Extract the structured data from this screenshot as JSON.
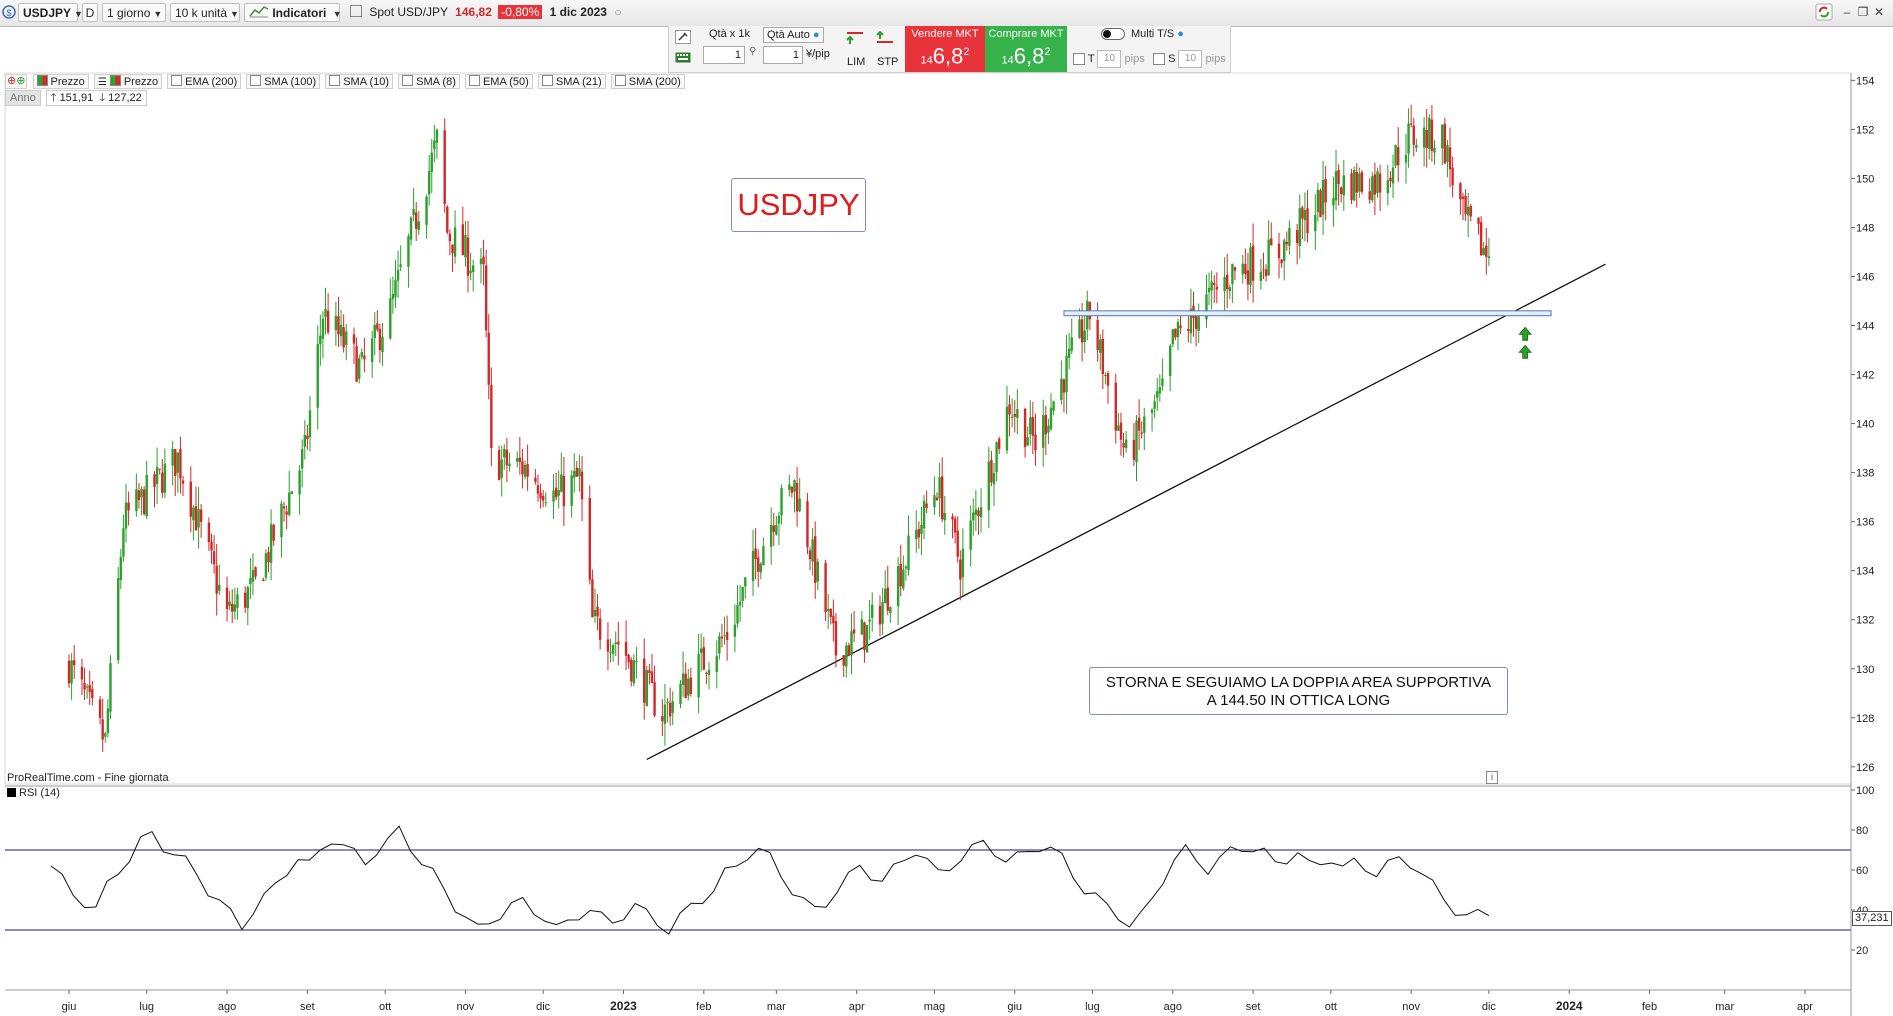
{
  "toolbar": {
    "symbol": "USDJPY",
    "d_button": "D",
    "period": "1 giorno",
    "units": "10 k unità",
    "indicators": "Indicatori",
    "spot_label": "Spot USD/JPY",
    "spot_price": "146,82",
    "spot_change": "-0,80%",
    "date": "1 dic 2023"
  },
  "trade": {
    "qty_label": "Qtà  x 1k",
    "qty_value": "1",
    "qty_auto": "Qtà Auto",
    "pip_value": "1",
    "pip_unit": "¥/pip",
    "lim": "LIM",
    "stp": "STP",
    "sell_label": "Vendere MKT",
    "buy_label": "Comprare MKT",
    "price_small": "14",
    "price_big": "6,8",
    "price_sup": "2",
    "multi": "Multi T/S",
    "t_label": "T",
    "s_label": "S",
    "pips_value": "10",
    "pips_label": "pips"
  },
  "legend": {
    "items": [
      "Prezzo",
      "Prezzo",
      "EMA (200)",
      "SMA (100)",
      "SMA (10)",
      "SMA (8)",
      "EMA (50)",
      "SMA (21)",
      "SMA (200)"
    ],
    "period_btn": "Anno",
    "high": "151,91",
    "low": "127,22"
  },
  "annotations": {
    "title": "USDJPY",
    "note_line1": "STORNA E SEGUIAMO LA DOPPIA AREA SUPPORTIVA",
    "note_line2": "A 144.50 IN OTTICA LONG"
  },
  "source": "ProRealTime.com - Fine giornata",
  "rsi": {
    "label": "RSI (14)",
    "last": "37,231"
  },
  "colors": {
    "up": "#2ca02c",
    "down": "#d62728",
    "rsi_band": "#1a1a7a",
    "support_zone": "#4a78c2",
    "title_red": "#e01b1b"
  },
  "chart_data": [
    {
      "type": "candlestick",
      "title": "USDJPY",
      "xlabel": "",
      "ylabel": "",
      "x_ticks": [
        "giu",
        "lug",
        "ago",
        "set",
        "ott",
        "nov",
        "dic",
        "2023",
        "feb",
        "mar",
        "apr",
        "mag",
        "giu",
        "lug",
        "ago",
        "set",
        "ott",
        "nov",
        "dic",
        "2024",
        "feb",
        "mar",
        "apr"
      ],
      "y_ticks": [
        126,
        128,
        130,
        132,
        134,
        136,
        138,
        140,
        142,
        144,
        146,
        148,
        150,
        152,
        154
      ],
      "ylim": [
        125.3,
        154.3
      ],
      "period_high": 151.91,
      "period_low": 127.22,
      "last_close": 146.82,
      "support_zone": [
        144.4,
        144.6
      ],
      "trendline": {
        "from": {
          "date": "2023-01-10",
          "value": 126.3
        },
        "to": {
          "date": "2024-01-15",
          "value": 146.5
        }
      },
      "arrows_up_at": {
        "date": "2023-12-15",
        "value": 143.6
      },
      "price_path": [
        {
          "date": "2022-06-01",
          "close": 130.2
        },
        {
          "date": "2022-06-15",
          "close": 127.0
        },
        {
          "date": "2022-06-22",
          "close": 136.0
        },
        {
          "date": "2022-07-13",
          "close": 138.6
        },
        {
          "date": "2022-08-01",
          "close": 132.2
        },
        {
          "date": "2022-08-12",
          "close": 133.4
        },
        {
          "date": "2022-08-31",
          "close": 138.8
        },
        {
          "date": "2022-09-07",
          "close": 144.5
        },
        {
          "date": "2022-09-22",
          "close": 142.2
        },
        {
          "date": "2022-10-03",
          "close": 144.6
        },
        {
          "date": "2022-10-21",
          "close": 151.5
        },
        {
          "date": "2022-10-25",
          "close": 147.8
        },
        {
          "date": "2022-11-08",
          "close": 146.0
        },
        {
          "date": "2022-11-11",
          "close": 138.5
        },
        {
          "date": "2022-11-24",
          "close": 138.2
        },
        {
          "date": "2022-12-06",
          "close": 137.0
        },
        {
          "date": "2022-12-15",
          "close": 137.8
        },
        {
          "date": "2022-12-20",
          "close": 131.9
        },
        {
          "date": "2022-12-30",
          "close": 131.1
        },
        {
          "date": "2023-01-16",
          "close": 128.2
        },
        {
          "date": "2023-01-31",
          "close": 130.2
        },
        {
          "date": "2023-02-10",
          "close": 131.4
        },
        {
          "date": "2023-02-28",
          "close": 136.3
        },
        {
          "date": "2023-03-08",
          "close": 137.5
        },
        {
          "date": "2023-03-24",
          "close": 130.7
        },
        {
          "date": "2023-04-05",
          "close": 131.5
        },
        {
          "date": "2023-04-20",
          "close": 134.5
        },
        {
          "date": "2023-05-02",
          "close": 137.5
        },
        {
          "date": "2023-05-11",
          "close": 134.3
        },
        {
          "date": "2023-05-30",
          "close": 140.8
        },
        {
          "date": "2023-06-09",
          "close": 139.2
        },
        {
          "date": "2023-06-30",
          "close": 144.5
        },
        {
          "date": "2023-07-14",
          "close": 138.6
        },
        {
          "date": "2023-07-28",
          "close": 141.2
        },
        {
          "date": "2023-08-01",
          "close": 143.3
        },
        {
          "date": "2023-08-24",
          "close": 146.2
        },
        {
          "date": "2023-09-11",
          "close": 147.0
        },
        {
          "date": "2023-10-03",
          "close": 149.8
        },
        {
          "date": "2023-10-20",
          "close": 149.9
        },
        {
          "date": "2023-10-31",
          "close": 151.7
        },
        {
          "date": "2023-11-13",
          "close": 151.7
        },
        {
          "date": "2023-11-21",
          "close": 148.4
        },
        {
          "date": "2023-12-01",
          "close": 146.8
        }
      ]
    },
    {
      "type": "line",
      "title": "RSI (14)",
      "y_ticks": [
        20,
        40,
        60,
        80,
        100
      ],
      "ylim": [
        0,
        102
      ],
      "bands": [
        30,
        70
      ],
      "last": 37.231,
      "series": [
        {
          "name": "RSI (14)",
          "values": [
            62,
            55,
            48,
            44,
            40,
            52,
            60,
            66,
            74,
            78,
            72,
            68,
            64,
            58,
            50,
            44,
            38,
            32,
            40,
            46,
            52,
            60,
            66,
            62,
            70,
            76,
            72,
            68,
            64,
            70,
            74,
            80,
            72,
            64,
            58,
            50,
            42,
            36,
            30,
            34,
            38,
            42,
            44,
            40,
            36,
            30,
            34,
            38,
            40,
            36,
            34,
            38,
            42,
            38,
            34,
            30,
            36,
            42,
            46,
            50,
            58,
            62,
            68,
            70,
            66,
            58,
            50,
            44,
            40,
            44,
            50,
            56,
            62,
            58,
            54,
            60,
            66,
            70,
            64,
            58,
            62,
            66,
            70,
            74,
            70,
            64,
            66,
            70,
            72,
            70,
            66,
            58,
            50,
            46,
            42,
            38,
            32,
            36,
            46,
            56,
            64,
            70,
            66,
            60,
            64,
            70,
            72,
            70,
            68,
            64,
            66,
            68,
            62,
            64,
            66,
            60,
            64,
            62,
            58,
            62,
            66,
            64,
            58,
            52,
            46,
            40,
            36,
            38,
            37.2
          ]
        }
      ]
    }
  ]
}
